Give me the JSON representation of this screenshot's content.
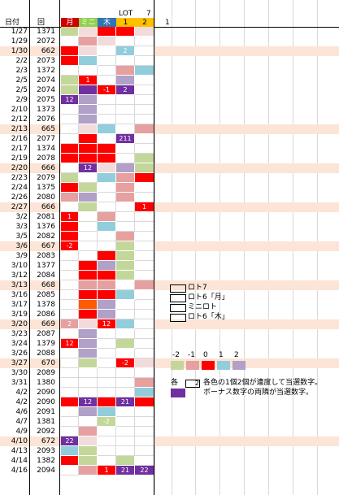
{
  "header": {
    "date_label": "日付",
    "round_label": "回",
    "lot_label": "LOT",
    "lot_value": "7",
    "days": [
      {
        "label": "月",
        "color": "#cc0000"
      },
      {
        "label": "ミニ",
        "color": "#92d050"
      },
      {
        "label": "木",
        "color": "#2e75b6"
      },
      {
        "label": "1",
        "color": "#ffc000"
      },
      {
        "label": "2",
        "color": "#ffc000"
      }
    ],
    "extra": "1"
  },
  "palette": {
    "R": "#ff0000",
    "P": "#e6a0a0",
    "G": "#c4d79b",
    "B": "#92cddc",
    "V": "#b1a0c7",
    "K": "#f2dcdb",
    "W": "#ffffff",
    "D": "#7030a0",
    "O": "#ff5b00"
  },
  "rows": [
    {
      "date": "1/27",
      "round": "1371",
      "hl": false,
      "cells": [
        "G",
        "K",
        "R",
        "R",
        "K"
      ],
      "labels": [
        "",
        "",
        "",
        "",
        ""
      ]
    },
    {
      "date": "1/29",
      "round": "2072",
      "hl": false,
      "cells": [
        "W",
        "P",
        "K",
        "W",
        "W"
      ],
      "labels": [
        "",
        "",
        "",
        "",
        ""
      ]
    },
    {
      "date": "1/30",
      "round": "662",
      "hl": true,
      "cells": [
        "R",
        "K",
        "W",
        "B",
        "W"
      ],
      "labels": [
        "",
        "",
        "",
        "2",
        ""
      ]
    },
    {
      "date": "2/2",
      "round": "2073",
      "hl": false,
      "cells": [
        "R",
        "B",
        "W",
        "W",
        "W"
      ],
      "labels": [
        "",
        "",
        "",
        "",
        ""
      ]
    },
    {
      "date": "2/3",
      "round": "1372",
      "hl": false,
      "cells": [
        "W",
        "W",
        "W",
        "P",
        "B"
      ],
      "labels": [
        "",
        "",
        "",
        "",
        ""
      ]
    },
    {
      "date": "2/5",
      "round": "2074",
      "hl": false,
      "cells": [
        "G",
        "R",
        "W",
        "V",
        "W"
      ],
      "labels": [
        "",
        "1",
        "",
        "",
        ""
      ]
    },
    {
      "date": "2/5",
      "round": "2074",
      "hl": false,
      "cells": [
        "G",
        "D",
        "R",
        "D",
        "W"
      ],
      "labels": [
        "",
        "",
        "-1",
        "2",
        ""
      ]
    },
    {
      "date": "2/9",
      "round": "2075",
      "hl": false,
      "cells": [
        "D",
        "V",
        "W",
        "W",
        "W"
      ],
      "labels": [
        "12",
        "",
        "",
        "",
        ""
      ]
    },
    {
      "date": "2/10",
      "round": "1373",
      "hl": false,
      "cells": [
        "W",
        "V",
        "W",
        "W",
        "W"
      ],
      "labels": [
        "",
        "",
        "",
        "",
        ""
      ]
    },
    {
      "date": "2/12",
      "round": "2076",
      "hl": false,
      "cells": [
        "W",
        "V",
        "W",
        "W",
        "W"
      ],
      "labels": [
        "",
        "",
        "",
        "",
        ""
      ]
    },
    {
      "date": "2/13",
      "round": "665",
      "hl": true,
      "cells": [
        "W",
        "K",
        "B",
        "W",
        "P"
      ],
      "labels": [
        "",
        "",
        "",
        "",
        ""
      ]
    },
    {
      "date": "2/16",
      "round": "2077",
      "hl": false,
      "cells": [
        "W",
        "R",
        "W",
        "D",
        "W"
      ],
      "labels": [
        "",
        "",
        "",
        "211",
        ""
      ]
    },
    {
      "date": "2/17",
      "round": "1374",
      "hl": false,
      "cells": [
        "R",
        "R",
        "R",
        "W",
        "W"
      ],
      "labels": [
        "",
        "",
        "",
        "",
        ""
      ]
    },
    {
      "date": "2/19",
      "round": "2078",
      "hl": false,
      "cells": [
        "R",
        "R",
        "R",
        "W",
        "G"
      ],
      "labels": [
        "",
        "",
        "",
        "",
        ""
      ]
    },
    {
      "date": "2/20",
      "round": "666",
      "hl": true,
      "cells": [
        "W",
        "D",
        "K",
        "V",
        "G"
      ],
      "labels": [
        "",
        "12",
        "",
        "",
        ""
      ]
    },
    {
      "date": "2/23",
      "round": "2079",
      "hl": false,
      "cells": [
        "G",
        "W",
        "B",
        "P",
        "R"
      ],
      "labels": [
        "",
        "",
        "",
        "",
        ""
      ]
    },
    {
      "date": "2/24",
      "round": "1375",
      "hl": false,
      "cells": [
        "R",
        "G",
        "W",
        "P",
        "W"
      ],
      "labels": [
        "",
        "",
        "",
        "",
        ""
      ]
    },
    {
      "date": "2/26",
      "round": "2080",
      "hl": false,
      "cells": [
        "P",
        "V",
        "W",
        "P",
        "W"
      ],
      "labels": [
        "",
        "",
        "",
        "",
        ""
      ]
    },
    {
      "date": "2/27",
      "round": "666",
      "hl": true,
      "cells": [
        "W",
        "G",
        "W",
        "W",
        "R"
      ],
      "labels": [
        "",
        "",
        "",
        "",
        "1"
      ]
    },
    {
      "date": "3/2",
      "round": "2081",
      "hl": false,
      "cells": [
        "R",
        "W",
        "P",
        "W",
        "W"
      ],
      "labels": [
        "1",
        "",
        "",
        "",
        ""
      ]
    },
    {
      "date": "3/3",
      "round": "1376",
      "hl": false,
      "cells": [
        "R",
        "W",
        "B",
        "W",
        "W"
      ],
      "labels": [
        "",
        "",
        "",
        "",
        ""
      ]
    },
    {
      "date": "3/5",
      "round": "2082",
      "hl": false,
      "cells": [
        "R",
        "W",
        "W",
        "P",
        "W"
      ],
      "labels": [
        "",
        "",
        "",
        "",
        ""
      ]
    },
    {
      "date": "3/6",
      "round": "667",
      "hl": true,
      "cells": [
        "R",
        "W",
        "W",
        "G",
        "W"
      ],
      "labels": [
        "-2",
        "",
        "",
        "",
        ""
      ]
    },
    {
      "date": "3/9",
      "round": "2083",
      "hl": false,
      "cells": [
        "W",
        "W",
        "R",
        "G",
        "W"
      ],
      "labels": [
        "",
        "",
        "",
        "",
        ""
      ]
    },
    {
      "date": "3/10",
      "round": "1377",
      "hl": false,
      "cells": [
        "W",
        "R",
        "V",
        "G",
        "W"
      ],
      "labels": [
        "",
        "",
        "",
        "",
        ""
      ]
    },
    {
      "date": "3/12",
      "round": "2084",
      "hl": false,
      "cells": [
        "W",
        "R",
        "R",
        "G",
        "W"
      ],
      "labels": [
        "",
        "",
        "",
        "",
        ""
      ]
    },
    {
      "date": "3/13",
      "round": "668",
      "hl": true,
      "cells": [
        "W",
        "P",
        "P",
        "W",
        "P"
      ],
      "labels": [
        "",
        "",
        "",
        "",
        ""
      ]
    },
    {
      "date": "3/16",
      "round": "2085",
      "hl": false,
      "cells": [
        "W",
        "R",
        "R",
        "B",
        "W"
      ],
      "labels": [
        "",
        "",
        "",
        "",
        ""
      ]
    },
    {
      "date": "3/17",
      "round": "1378",
      "hl": false,
      "cells": [
        "W",
        "O",
        "V",
        "W",
        "W"
      ],
      "labels": [
        "",
        "",
        "",
        "",
        ""
      ]
    },
    {
      "date": "3/19",
      "round": "2086",
      "hl": false,
      "cells": [
        "W",
        "R",
        "V",
        "W",
        "W"
      ],
      "labels": [
        "",
        "",
        "",
        "",
        ""
      ]
    },
    {
      "date": "3/20",
      "round": "669",
      "hl": true,
      "cells": [
        "P",
        "K",
        "R",
        "B",
        "W"
      ],
      "labels": [
        "2",
        "",
        "12",
        "",
        ""
      ]
    },
    {
      "date": "3/23",
      "round": "2087",
      "hl": false,
      "cells": [
        "W",
        "V",
        "W",
        "W",
        "W"
      ],
      "labels": [
        "",
        "",
        "",
        "",
        ""
      ]
    },
    {
      "date": "3/24",
      "round": "1379",
      "hl": false,
      "cells": [
        "R",
        "V",
        "W",
        "G",
        "W"
      ],
      "labels": [
        "12",
        "",
        "",
        "",
        ""
      ]
    },
    {
      "date": "3/26",
      "round": "2088",
      "hl": false,
      "cells": [
        "W",
        "V",
        "W",
        "W",
        "W"
      ],
      "labels": [
        "",
        "",
        "",
        "",
        ""
      ]
    },
    {
      "date": "3/27",
      "round": "670",
      "hl": true,
      "cells": [
        "W",
        "G",
        "W",
        "R",
        "K"
      ],
      "labels": [
        "",
        "",
        "",
        "-2",
        ""
      ]
    },
    {
      "date": "3/30",
      "round": "2089",
      "hl": false,
      "cells": [
        "W",
        "W",
        "W",
        "W",
        "W"
      ],
      "labels": [
        "",
        "",
        "",
        "",
        ""
      ]
    },
    {
      "date": "3/31",
      "round": "1380",
      "hl": false,
      "cells": [
        "W",
        "W",
        "W",
        "W",
        "P"
      ],
      "labels": [
        "",
        "",
        "",
        "",
        ""
      ]
    },
    {
      "date": "4/2",
      "round": "2090",
      "hl": false,
      "cells": [
        "W",
        "W",
        "W",
        "W",
        "B"
      ],
      "labels": [
        "",
        "",
        "",
        "",
        ""
      ]
    },
    {
      "date": "4/2",
      "round": "2090",
      "hl": false,
      "cells": [
        "R",
        "D",
        "R",
        "D",
        "R"
      ],
      "labels": [
        "",
        "12",
        "",
        "21",
        ""
      ]
    },
    {
      "date": "4/6",
      "round": "2091",
      "hl": false,
      "cells": [
        "W",
        "V",
        "B",
        "W",
        "W"
      ],
      "labels": [
        "",
        "",
        "",
        "",
        ""
      ]
    },
    {
      "date": "4/7",
      "round": "1381",
      "hl": false,
      "cells": [
        "W",
        "W",
        "G",
        "W",
        "W"
      ],
      "labels": [
        "",
        "",
        "-2",
        "",
        ""
      ]
    },
    {
      "date": "4/9",
      "round": "2092",
      "hl": false,
      "cells": [
        "W",
        "P",
        "W",
        "W",
        "W"
      ],
      "labels": [
        "",
        "",
        "",
        "",
        ""
      ]
    },
    {
      "date": "4/10",
      "round": "672",
      "hl": true,
      "cells": [
        "D",
        "K",
        "W",
        "W",
        "W"
      ],
      "labels": [
        "22",
        "",
        "",
        "",
        ""
      ]
    },
    {
      "date": "4/13",
      "round": "2093",
      "hl": false,
      "cells": [
        "B",
        "G",
        "W",
        "W",
        "W"
      ],
      "labels": [
        "",
        "",
        "",
        "",
        ""
      ]
    },
    {
      "date": "4/14",
      "round": "1382",
      "hl": false,
      "cells": [
        "R",
        "G",
        "W",
        "G",
        "W"
      ],
      "labels": [
        "",
        "",
        "",
        "",
        ""
      ]
    },
    {
      "date": "4/16",
      "round": "2094",
      "hl": false,
      "cells": [
        "W",
        "P",
        "R",
        "D",
        "D"
      ],
      "labels": [
        "",
        "",
        "1",
        "21",
        "22"
      ]
    }
  ],
  "legend": {
    "items": [
      "ロト7",
      "ロト6「月」",
      "ミニロト",
      "ロト6「木」"
    ],
    "scale_labels": [
      "-2",
      "-1",
      "0",
      "1",
      "2"
    ],
    "scale_colors": [
      "#c4d79b",
      "#e6a0a0",
      "#ff0000",
      "#92cddc",
      "#b1a0c7"
    ],
    "note_prefix": "各",
    "note_box": "2",
    "note_line1": "各色の1個2個が連度して当選数字。",
    "note_line2": "ボーナス数字の両隣が当選数字。",
    "note_color": "#7030a0"
  }
}
